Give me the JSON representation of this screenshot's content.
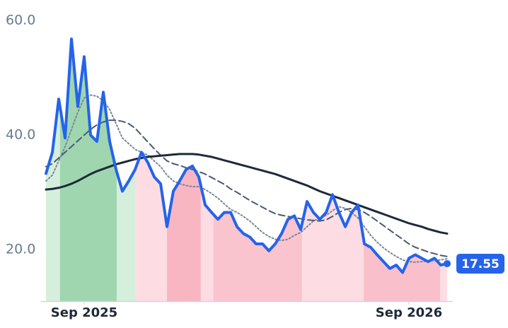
{
  "chart_data": {
    "type": "line",
    "categories": [
      null,
      null,
      null,
      null,
      null,
      null,
      "Sep 2025",
      null,
      null,
      null,
      null,
      null,
      null,
      null,
      null,
      null,
      null,
      null,
      null,
      null,
      null,
      null,
      null,
      null,
      null,
      null,
      null,
      null,
      null,
      null,
      null,
      null,
      null,
      null,
      null,
      null,
      null,
      null,
      null,
      null,
      null,
      null,
      null,
      null,
      null,
      null,
      null,
      null,
      null,
      null,
      null,
      null,
      null,
      null,
      null,
      null,
      null,
      "Sep 2026",
      null,
      null,
      null,
      null,
      null,
      null
    ],
    "series": [
      {
        "color": "#2563eb",
        "style": "solid",
        "values": [
          33.3,
          37,
          46.3,
          39.5,
          56.8,
          45,
          53.7,
          40,
          38.9,
          47.5,
          38.9,
          34,
          30.2,
          32,
          34,
          37,
          35.2,
          32.7,
          31.5,
          24,
          30.2,
          32,
          34,
          34.6,
          32.7,
          27.8,
          26.5,
          25.3,
          26.5,
          26.5,
          24,
          22.8,
          22.2,
          21,
          21,
          19.8,
          21,
          22.8,
          25.3,
          25.9,
          23.5,
          28.4,
          26.5,
          25.3,
          26.5,
          29.6,
          26.5,
          24,
          26.5,
          27.8,
          21,
          20.4,
          19.1,
          17.9,
          16.7,
          17.3,
          16,
          18.5,
          19.1,
          18.5,
          17.9,
          18.5,
          17.3,
          17.55
        ]
      },
      {
        "color": "#1e293b",
        "style": "solid",
        "values": [
          30.5,
          30.6,
          30.8,
          31.1,
          31.5,
          32,
          32.6,
          33.2,
          33.7,
          34.1,
          34.5,
          34.9,
          35.2,
          35.5,
          35.8,
          36,
          36.2,
          36.3,
          36.4,
          36.5,
          36.6,
          36.7,
          36.7,
          36.7,
          36.6,
          36.4,
          36.2,
          35.9,
          35.6,
          35.3,
          35,
          34.7,
          34.4,
          34.1,
          33.8,
          33.5,
          33.2,
          32.8,
          32.4,
          32,
          31.6,
          31.2,
          30.7,
          30.2,
          29.8,
          29.4,
          29,
          28.6,
          28.2,
          27.8,
          27.4,
          27,
          26.6,
          26.2,
          25.8,
          25.4,
          25,
          24.6,
          24.3,
          24,
          23.6,
          23.3,
          23,
          22.8
        ]
      },
      {
        "color": "#4b5a70",
        "style": "dashed",
        "values": [
          34.5,
          35,
          36,
          37,
          38,
          39,
          40,
          41,
          41.8,
          42.3,
          42.6,
          42.6,
          42.4,
          42,
          41.2,
          40,
          38.8,
          37.6,
          36.5,
          35.5,
          35,
          34.7,
          34.3,
          34,
          33.6,
          33.2,
          32.6,
          32,
          31.4,
          30.6,
          30,
          29.3,
          28.6,
          28,
          27.4,
          26.8,
          26.3,
          26,
          25.8,
          25.6,
          25.4,
          25.2,
          25.1,
          25,
          25.2,
          25.8,
          26.5,
          27,
          27.2,
          27,
          26.5,
          25.8,
          25,
          24.2,
          23.4,
          22.6,
          21.8,
          21,
          20.4,
          20,
          19.6,
          19.3,
          19,
          18.8
        ]
      },
      {
        "color": "#7d8799",
        "style": "dotted",
        "values": [
          32,
          33,
          35.5,
          38,
          41,
          44,
          46.5,
          47,
          46.8,
          46,
          44.5,
          42,
          39.5,
          38.5,
          37.5,
          37,
          36.5,
          35.5,
          34.5,
          33,
          32,
          31.5,
          31.2,
          31,
          31,
          30.5,
          29.8,
          29,
          28,
          27,
          26.5,
          25.8,
          25,
          24,
          23,
          22.3,
          21.8,
          21.6,
          21.8,
          22.5,
          23,
          24,
          25,
          25.5,
          26,
          26.8,
          27.5,
          27.2,
          26.5,
          25.5,
          24,
          22.5,
          21.3,
          20.3,
          19.5,
          18.8,
          18.2,
          17.9,
          17.8,
          17.9,
          18,
          18.1,
          18.2,
          18.4
        ]
      }
    ],
    "bands": [
      {
        "start": 0,
        "end": 2.2,
        "color": "#d5efdc"
      },
      {
        "start": 2.2,
        "end": 11.1,
        "color": "#9fd6b0"
      },
      {
        "start": 11.1,
        "end": 14,
        "color": "#d5efdc"
      },
      {
        "start": 14,
        "end": 19,
        "color": "#fddde3"
      },
      {
        "start": 19,
        "end": 24.3,
        "color": "#f8b6c3"
      },
      {
        "start": 24.3,
        "end": 26.3,
        "color": "#fddde3"
      },
      {
        "start": 26.3,
        "end": 40.2,
        "color": "#fac4ce"
      },
      {
        "start": 40.2,
        "end": 49.9,
        "color": "#fddde3"
      },
      {
        "start": 49.9,
        "end": 61.9,
        "color": "#f9c0cb"
      },
      {
        "start": 61.9,
        "end": 63,
        "color": "#fddde3"
      }
    ],
    "ylim": [
      11,
      63.6
    ],
    "yticks": [
      {
        "value": 20,
        "label": "20.0"
      },
      {
        "value": 40,
        "label": "40.0"
      },
      {
        "value": 60,
        "label": "60.0"
      }
    ],
    "grid": false
  }
}
